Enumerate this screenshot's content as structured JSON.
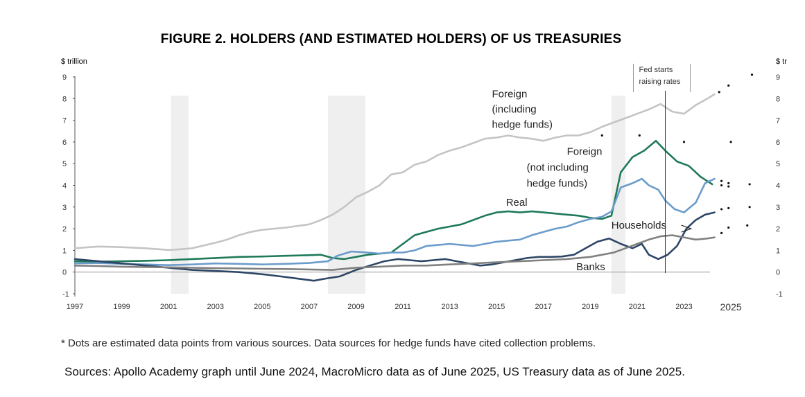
{
  "chart_data": {
    "type": "line",
    "title": "FIGURE 2. HOLDERS (AND ESTIMATED HOLDERS) OF US TREASURIES",
    "ylabel_left": "$ trillion",
    "ylabel_right": "$ tr",
    "xlim": [
      1997,
      2025.5
    ],
    "ylim": [
      -1,
      9
    ],
    "yticks": [
      "9",
      "8",
      "7",
      "6",
      "5",
      "4",
      "3",
      "2",
      "1",
      "0",
      "-1"
    ],
    "yticks_right": [
      "9",
      "8",
      "7",
      "6",
      "5",
      "4",
      "3",
      "2",
      "1",
      "0",
      "-1"
    ],
    "xticks": [
      "1997",
      "1999",
      "2001",
      "2003",
      "2005",
      "2007",
      "2009",
      "2011",
      "2013",
      "2015",
      "2017",
      "2019",
      "2021",
      "2023",
      "2025"
    ],
    "recessions": [
      [
        2001.1,
        2001.85
      ],
      [
        2007.8,
        2009.4
      ],
      [
        2019.9,
        2020.5
      ]
    ],
    "annotation": {
      "line1": "Fed starts",
      "line2": "raising rates",
      "x": 2022.2
    },
    "series": [
      {
        "name": "Foreign (including hedge funds)",
        "label_lines": [
          "Foreign",
          "(including",
          "hedge funds)"
        ],
        "color": "#c4c4c4",
        "x": [
          1997,
          1998,
          1999,
          2000,
          2001,
          2001.5,
          2002,
          2003,
          2003.5,
          2004,
          2004.5,
          2005,
          2006,
          2007,
          2007.5,
          2008,
          2008.5,
          2009,
          2009.5,
          2010,
          2010.5,
          2011,
          2011.5,
          2012,
          2012.5,
          2013,
          2013.5,
          2014,
          2014.5,
          2015,
          2015.5,
          2016,
          2016.5,
          2017,
          2017.5,
          2018,
          2018.5,
          2019,
          2019.5,
          2020,
          2020.5,
          2021,
          2021.5,
          2022,
          2022.5,
          2023,
          2023.5,
          2024,
          2024.3
        ],
        "values": [
          1.1,
          1.18,
          1.15,
          1.1,
          1.02,
          1.05,
          1.1,
          1.35,
          1.5,
          1.7,
          1.85,
          1.95,
          2.05,
          2.2,
          2.4,
          2.65,
          3.0,
          3.45,
          3.7,
          4.0,
          4.5,
          4.6,
          4.95,
          5.1,
          5.4,
          5.6,
          5.75,
          5.95,
          6.15,
          6.2,
          6.3,
          6.2,
          6.15,
          6.05,
          6.2,
          6.3,
          6.3,
          6.45,
          6.7,
          6.9,
          7.1,
          7.3,
          7.5,
          7.75,
          7.4,
          7.3,
          7.7,
          8.0,
          8.2
        ]
      },
      {
        "name": "Foreign (not including hedge funds)",
        "label_lines": [
          "Foreign",
          "(not including",
          "hedge funds)"
        ],
        "color": "#1e7a58",
        "x": [
          1997,
          1998,
          1999,
          2000,
          2001,
          2002,
          2003,
          2004,
          2005,
          2006,
          2007,
          2007.5,
          2008,
          2008.5,
          2009,
          2009.5,
          2010,
          2010.5,
          2011,
          2011.5,
          2012,
          2012.5,
          2013,
          2013.5,
          2014,
          2014.5,
          2015,
          2015.5,
          2016,
          2016.5,
          2017,
          2017.5,
          2018,
          2018.5,
          2019,
          2019.5,
          2019.9,
          2020.3,
          2020.8,
          2021.3,
          2021.8,
          2022.2,
          2022.7,
          2023.2,
          2023.7,
          2024.2
        ],
        "values": [
          0.5,
          0.48,
          0.5,
          0.52,
          0.55,
          0.6,
          0.65,
          0.7,
          0.72,
          0.75,
          0.78,
          0.8,
          0.65,
          0.6,
          0.7,
          0.8,
          0.85,
          0.9,
          1.3,
          1.7,
          1.85,
          2.0,
          2.1,
          2.2,
          2.4,
          2.6,
          2.75,
          2.8,
          2.75,
          2.8,
          2.75,
          2.7,
          2.65,
          2.6,
          2.5,
          2.45,
          2.6,
          4.6,
          5.3,
          5.6,
          6.05,
          5.6,
          5.1,
          4.9,
          4.4,
          4.05
        ]
      },
      {
        "name": "Real",
        "label_lines": [
          "Real"
        ],
        "color": "#6b9ccb",
        "x": [
          1997,
          1998,
          1999,
          2000,
          2001,
          2002,
          2003,
          2004,
          2005,
          2006,
          2007,
          2007.8,
          2008.2,
          2008.8,
          2009.5,
          2010,
          2010.5,
          2011,
          2011.5,
          2012,
          2012.5,
          2013,
          2013.5,
          2014,
          2014.5,
          2015,
          2015.5,
          2016,
          2016.5,
          2017,
          2017.5,
          2018,
          2018.5,
          2019,
          2019.5,
          2019.9,
          2020.3,
          2020.8,
          2021.2,
          2021.5,
          2021.9,
          2022.2,
          2022.6,
          2023,
          2023.5,
          2023.9,
          2024.3
        ],
        "values": [
          0.4,
          0.42,
          0.38,
          0.35,
          0.32,
          0.35,
          0.4,
          0.38,
          0.35,
          0.38,
          0.42,
          0.5,
          0.75,
          0.95,
          0.9,
          0.85,
          0.9,
          0.9,
          1.0,
          1.2,
          1.25,
          1.3,
          1.25,
          1.2,
          1.3,
          1.4,
          1.45,
          1.5,
          1.7,
          1.85,
          2.0,
          2.1,
          2.3,
          2.45,
          2.55,
          2.8,
          3.9,
          4.1,
          4.3,
          4.0,
          3.8,
          3.3,
          2.9,
          2.75,
          3.2,
          4.1,
          4.3
        ]
      },
      {
        "name": "Households",
        "label_lines": [
          "Households"
        ],
        "color": "#2e4666",
        "x": [
          1997,
          1998,
          1999,
          2000,
          2001,
          2002,
          2003,
          2004,
          2005,
          2005.8,
          2006.5,
          2007.2,
          2007.7,
          2008.3,
          2009,
          2009.6,
          2010.2,
          2010.8,
          2011.3,
          2011.8,
          2012.3,
          2012.8,
          2013.3,
          2013.8,
          2014.3,
          2014.8,
          2015.3,
          2015.8,
          2016.3,
          2016.8,
          2017.3,
          2017.8,
          2018.3,
          2018.8,
          2019.3,
          2019.8,
          2020.3,
          2020.8,
          2021.2,
          2021.5,
          2021.9,
          2022.3,
          2022.7,
          2023.1,
          2023.5,
          2023.9,
          2024.3
        ],
        "values": [
          0.6,
          0.5,
          0.4,
          0.3,
          0.2,
          0.1,
          0.05,
          0.0,
          -0.1,
          -0.2,
          -0.3,
          -0.4,
          -0.3,
          -0.2,
          0.1,
          0.3,
          0.5,
          0.6,
          0.55,
          0.5,
          0.55,
          0.6,
          0.5,
          0.4,
          0.3,
          0.35,
          0.45,
          0.55,
          0.65,
          0.7,
          0.7,
          0.72,
          0.8,
          1.1,
          1.4,
          1.55,
          1.3,
          1.1,
          1.3,
          0.8,
          0.6,
          0.8,
          1.2,
          2.0,
          2.4,
          2.65,
          2.75
        ]
      },
      {
        "name": "Banks",
        "label_lines": [
          "Banks"
        ],
        "color": "#808080",
        "x": [
          1997,
          1998,
          1999,
          2000,
          2001,
          2002,
          2003,
          2004,
          2005,
          2006,
          2007,
          2008,
          2009,
          2010,
          2011,
          2012,
          2013,
          2014,
          2015,
          2016,
          2017,
          2018,
          2019,
          2019.5,
          2020,
          2020.5,
          2021,
          2021.5,
          2022,
          2022.5,
          2023,
          2023.5,
          2024,
          2024.3
        ],
        "values": [
          0.3,
          0.28,
          0.25,
          0.23,
          0.22,
          0.2,
          0.18,
          0.17,
          0.15,
          0.14,
          0.12,
          0.1,
          0.2,
          0.25,
          0.3,
          0.3,
          0.35,
          0.4,
          0.45,
          0.5,
          0.55,
          0.6,
          0.7,
          0.8,
          0.9,
          1.1,
          1.3,
          1.5,
          1.65,
          1.7,
          1.6,
          1.5,
          1.55,
          1.6
        ]
      }
    ],
    "estimated_points": [
      {
        "x": 2024.5,
        "y": 8.3
      },
      {
        "x": 2024.9,
        "y": 8.6
      },
      {
        "x": 2025.9,
        "y": 9.1
      },
      {
        "x": 2019.5,
        "y": 6.3
      },
      {
        "x": 2021.1,
        "y": 6.3
      },
      {
        "x": 2023.0,
        "y": 6.0
      },
      {
        "x": 2025.0,
        "y": 6.0
      },
      {
        "x": 2024.6,
        "y": 4.2
      },
      {
        "x": 2024.6,
        "y": 4.0
      },
      {
        "x": 2024.9,
        "y": 4.1
      },
      {
        "x": 2024.9,
        "y": 3.95
      },
      {
        "x": 2025.8,
        "y": 4.05
      },
      {
        "x": 2024.6,
        "y": 2.9
      },
      {
        "x": 2024.9,
        "y": 2.95
      },
      {
        "x": 2025.8,
        "y": 3.0
      },
      {
        "x": 2024.6,
        "y": 1.8
      },
      {
        "x": 2024.9,
        "y": 2.05
      },
      {
        "x": 2025.7,
        "y": 2.15
      }
    ],
    "footnote": "* Dots are estimated data points from various sources. Data sources for hedge funds have cited collection problems.",
    "sources": "Sources: Apollo Academy graph until June 2024, MacroMicro data as of June 2025, US Treasury data as of June 2025."
  }
}
